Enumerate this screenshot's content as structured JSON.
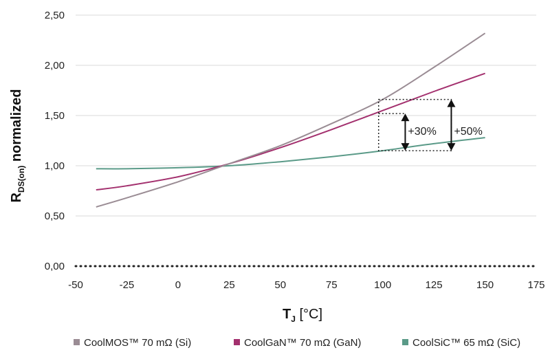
{
  "chart_data": {
    "type": "line",
    "xlabel": "T",
    "xlabel_sub": "J",
    "xlabel_unit": "[°C]",
    "ylabel": "R",
    "ylabel_sub": "DS(on)",
    "ylabel_suffix": "normalized",
    "xlim": [
      -50,
      175
    ],
    "ylim": [
      0,
      2.5
    ],
    "x_ticks": [
      -50,
      -25,
      0,
      25,
      50,
      75,
      100,
      125,
      150,
      175
    ],
    "x_tick_labels": [
      "-50",
      "-25",
      "0",
      "25",
      "50",
      "75",
      "100",
      "125",
      "150",
      "175"
    ],
    "y_ticks": [
      0,
      0.5,
      1.0,
      1.5,
      2.0,
      2.5
    ],
    "y_tick_labels": [
      "0,00",
      "0,50",
      "1,00",
      "1,50",
      "2,00",
      "2,50"
    ],
    "grid": "horizontal",
    "legend_position": "bottom",
    "series": [
      {
        "name": "CoolMOS™ 70 mΩ (Si)",
        "color": "#9a8c94",
        "x": [
          -40,
          -25,
          0,
          25,
          50,
          75,
          100,
          125,
          150
        ],
        "y": [
          0.59,
          0.68,
          0.84,
          1.02,
          1.2,
          1.42,
          1.66,
          1.98,
          2.32
        ]
      },
      {
        "name": "CoolGaN™ 70 mΩ (GaN)",
        "color": "#a3306e",
        "x": [
          -40,
          -25,
          0,
          25,
          50,
          75,
          100,
          125,
          150
        ],
        "y": [
          0.76,
          0.8,
          0.89,
          1.02,
          1.18,
          1.36,
          1.55,
          1.74,
          1.92
        ]
      },
      {
        "name": "CoolSiC™ 65 mΩ (SiC)",
        "color": "#5a9a88",
        "x": [
          -40,
          -25,
          0,
          25,
          50,
          75,
          100,
          125,
          150
        ],
        "y": [
          0.97,
          0.97,
          0.98,
          1.0,
          1.04,
          1.09,
          1.15,
          1.22,
          1.28
        ]
      }
    ],
    "annotations": [
      {
        "text": "+30%"
      },
      {
        "text": "+50%"
      }
    ]
  }
}
